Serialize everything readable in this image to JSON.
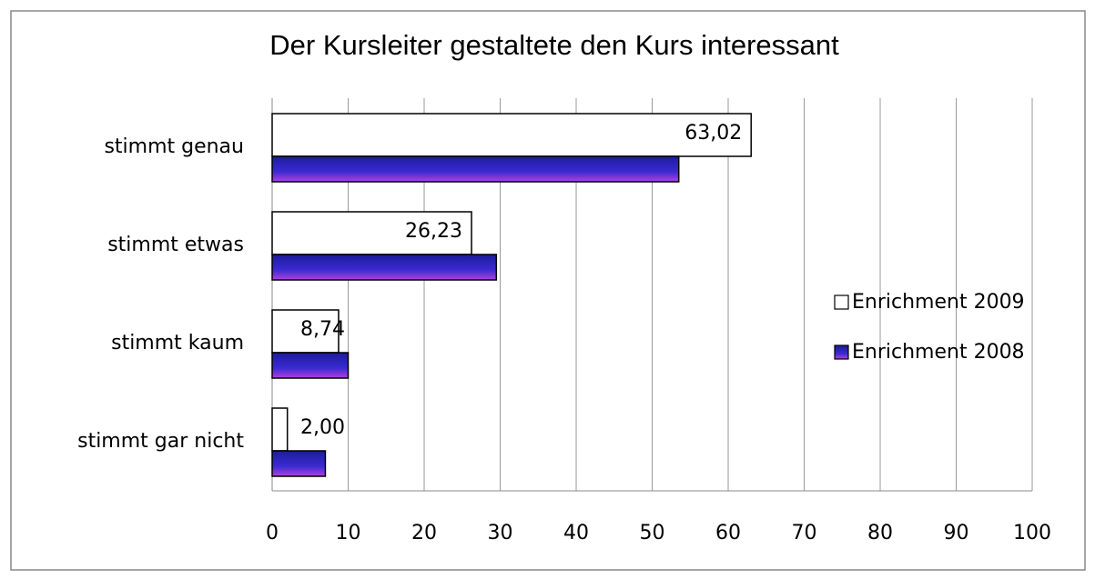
{
  "chart_data": {
    "type": "hbar",
    "title": "Der Kursleiter gestaltete den Kurs interessant",
    "categories": [
      "stimmt genau",
      "stimmt etwas",
      "stimmt kaum",
      "stimmt gar nicht"
    ],
    "series": [
      {
        "name": "Enrichment 2009",
        "color": "#ffffff",
        "values": [
          63.02,
          26.23,
          8.74,
          2.0
        ],
        "value_labels": [
          "63,02",
          "26,23",
          "8,74",
          "2,00"
        ]
      },
      {
        "name": "Enrichment 2008",
        "color": "#1c1c9c",
        "values": [
          53.5,
          29.5,
          10,
          7
        ]
      }
    ],
    "xlim": [
      0,
      100
    ],
    "xticks": [
      0,
      10,
      20,
      30,
      40,
      50,
      60,
      70,
      80,
      90,
      100
    ],
    "grid": true,
    "legend": "right"
  }
}
